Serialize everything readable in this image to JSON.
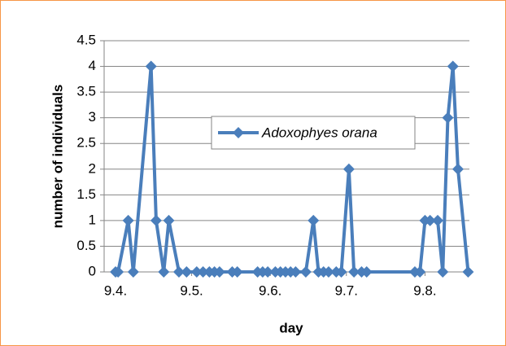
{
  "chart_data": {
    "type": "line",
    "x_label": "day",
    "y_label": "number of individuals",
    "series": [
      {
        "name": "Adoxophyes orana",
        "color": "#4a7ebb",
        "x": [
          99,
          100,
          104,
          106,
          113,
          115,
          118,
          120,
          124,
          127,
          131,
          133.5,
          136,
          138,
          140,
          145,
          147,
          155,
          157,
          159,
          162,
          164,
          166,
          168,
          170,
          174,
          177,
          179,
          181,
          183,
          186,
          188,
          191,
          193,
          196,
          198,
          217,
          219,
          221,
          223,
          226,
          228,
          230,
          232,
          234,
          238
        ],
        "values": [
          0,
          0,
          1,
          0,
          4,
          1,
          0,
          1,
          0,
          0,
          0,
          0,
          0,
          0,
          0,
          0,
          0,
          0,
          0,
          0,
          0,
          0,
          0,
          0,
          0,
          0,
          1,
          0,
          0,
          0,
          0,
          0,
          2,
          0,
          0,
          0,
          0,
          0,
          1,
          1,
          1,
          0,
          3,
          4,
          2,
          0
        ]
      }
    ],
    "xlim": [
      94.5,
      238.5
    ],
    "xticks": [
      {
        "value": 99,
        "label": "9.4."
      },
      {
        "value": 129,
        "label": "9.5."
      },
      {
        "value": 160,
        "label": "9.6."
      },
      {
        "value": 190,
        "label": "9.7."
      },
      {
        "value": 221,
        "label": "9.8."
      }
    ],
    "ylim": [
      0,
      4.5
    ],
    "yticks": [
      0,
      0.5,
      1,
      1.5,
      2,
      2.5,
      3,
      3.5,
      4,
      4.5
    ],
    "grid": true
  }
}
